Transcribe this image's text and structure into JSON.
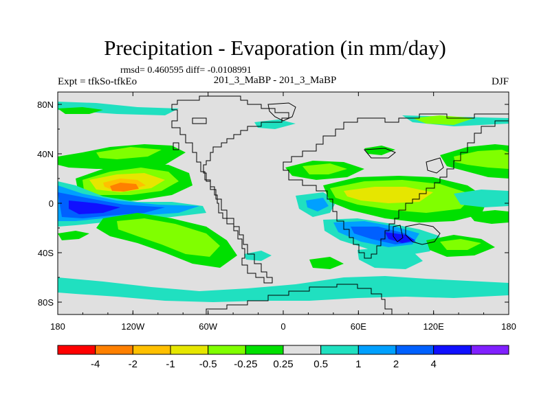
{
  "figure": {
    "title": "Precipitation - Evaporation (in mm/day)",
    "stats": "rmsd= 0.460595 diff= -0.0108991",
    "experiment": "Expt = tfkSo-tfkEo",
    "case": "201_3_MaBP - 201_3_MaBP",
    "season": "DJF"
  },
  "chart_data": {
    "type": "heatmap",
    "projection": "cylindrical-equidistant",
    "lon_range": [
      -180,
      180
    ],
    "lat_range": [
      -90,
      90
    ],
    "x_ticks": [
      {
        "value": -180,
        "label": "180"
      },
      {
        "value": -120,
        "label": "120W"
      },
      {
        "value": -60,
        "label": "60W"
      },
      {
        "value": 0,
        "label": "0"
      },
      {
        "value": 60,
        "label": "60E"
      },
      {
        "value": 120,
        "label": "120E"
      },
      {
        "value": 180,
        "label": "180"
      }
    ],
    "y_ticks": [
      {
        "value": 80,
        "label": "80N"
      },
      {
        "value": 40,
        "label": "40N"
      },
      {
        "value": 0,
        "label": "0"
      },
      {
        "value": -40,
        "label": "40S"
      },
      {
        "value": -80,
        "label": "80S"
      }
    ],
    "colorbar": {
      "bins": [
        {
          "color": "#ff0000"
        },
        {
          "color": "#ff8000"
        },
        {
          "color": "#ffc000"
        },
        {
          "color": "#e6e600"
        },
        {
          "color": "#80ff00"
        },
        {
          "color": "#00e000"
        },
        {
          "color": "#e0e0e0"
        },
        {
          "color": "#20e0c0"
        },
        {
          "color": "#00a0ff"
        },
        {
          "color": "#0060ff"
        },
        {
          "color": "#1010ff"
        },
        {
          "color": "#8020ff"
        }
      ],
      "labels": [
        "-4",
        "-2",
        "-1",
        "-0.5",
        "-0.25",
        "0.25",
        "0.5",
        "1",
        "2",
        "4"
      ]
    },
    "background_color": "#e0e0e0",
    "features": [
      {
        "name": "eq-pacific-max",
        "level": "-4",
        "lon": -138,
        "lat": 10
      },
      {
        "name": "eq-pacific-dry-core",
        "level": "-2",
        "lon": -125,
        "lat": 10
      },
      {
        "name": "eq-pacific-dry-band",
        "level": "-1",
        "lon": -128,
        "lat": 10
      },
      {
        "name": "eq-pacific-dry-outer",
        "level": "-0.5",
        "lon": -125,
        "lat": 10
      },
      {
        "name": "s-pacific-wet",
        "level": "2",
        "lon": -148,
        "lat": -5
      },
      {
        "name": "s-pacific-wet-outer",
        "level": "0.5",
        "lon": -150,
        "lat": -4
      },
      {
        "name": "s-pacific-dry-band",
        "level": "-0.5",
        "lon": -110,
        "lat": -30
      },
      {
        "name": "io-dry",
        "level": "-1",
        "lon": 68,
        "lat": 5
      },
      {
        "name": "io-wet",
        "level": "2",
        "lon": 80,
        "lat": -27
      },
      {
        "name": "n-pacific-dry",
        "level": "-0.5",
        "lon": 150,
        "lat": 33
      },
      {
        "name": "southern-ocean-wet",
        "level": "0.5",
        "lon": 0,
        "lat": -62
      }
    ]
  }
}
